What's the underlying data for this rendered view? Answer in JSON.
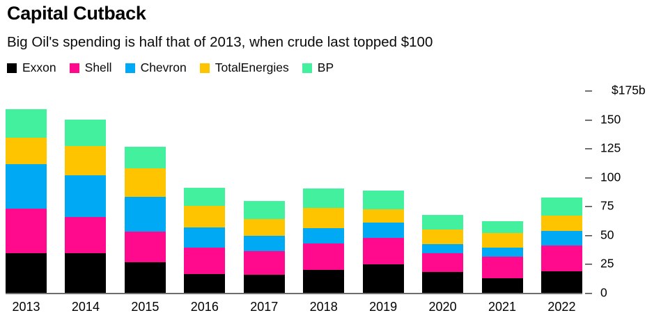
{
  "header": {
    "title": "Capital Cutback",
    "subtitle": "Big Oil's spending is half that of 2013, when crude last topped $100"
  },
  "legend": [
    {
      "label": "Exxon",
      "color": "#000000"
    },
    {
      "label": "Shell",
      "color": "#ff0a8c"
    },
    {
      "label": "Chevron",
      "color": "#00a9f4"
    },
    {
      "label": "TotalEnergies",
      "color": "#ffc400"
    },
    {
      "label": "BP",
      "color": "#42f09e"
    }
  ],
  "chart_data": {
    "type": "bar",
    "stacked": true,
    "title": "Capital Cutback",
    "subtitle": "Big Oil's spending is half that of 2013, when crude last topped $100",
    "unit": "billions of US dollars",
    "categories": [
      "2013",
      "2014",
      "2015",
      "2016",
      "2017",
      "2018",
      "2019",
      "2020",
      "2021",
      "2022"
    ],
    "series": [
      {
        "name": "Exxon",
        "color": "#000000",
        "values": [
          34,
          34,
          26.5,
          16,
          15.5,
          20,
          24.5,
          18,
          12.5,
          18.5
        ]
      },
      {
        "name": "Shell",
        "color": "#ff0a8c",
        "values": [
          39,
          31.5,
          26.5,
          23,
          20.5,
          23,
          23,
          16,
          19,
          22.5
        ]
      },
      {
        "name": "Chevron",
        "color": "#00a9f4",
        "values": [
          38.5,
          36,
          30,
          17.5,
          13.5,
          13,
          13,
          8,
          7.5,
          12.5
        ]
      },
      {
        "name": "TotalEnergies",
        "color": "#ffc400",
        "values": [
          22.5,
          25.5,
          24.5,
          18.5,
          14,
          17.5,
          11.5,
          13,
          12.5,
          13.5
        ]
      },
      {
        "name": "BP",
        "color": "#42f09e",
        "values": [
          24.5,
          22.5,
          19,
          16,
          16,
          17,
          16.5,
          12.5,
          10.5,
          15.5
        ]
      }
    ],
    "ylim": [
      0,
      175
    ],
    "yticks": [
      0,
      25,
      50,
      75,
      100,
      125,
      150,
      175
    ],
    "ytick_top_label": "$175b",
    "grid": false,
    "legend_position": "top"
  }
}
